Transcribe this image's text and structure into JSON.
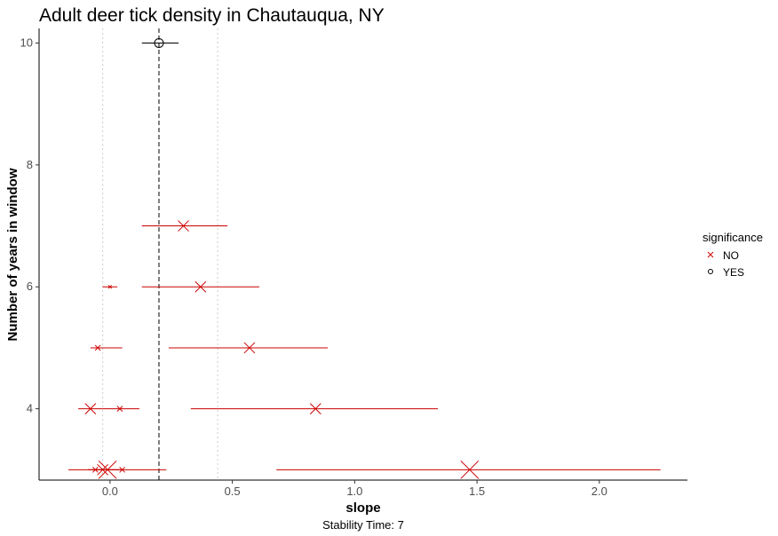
{
  "chart_data": {
    "type": "scatter",
    "title": "Adult deer tick density in Chautauqua, NY",
    "xlabel": "slope",
    "ylabel": "Number of years in window",
    "caption": "Stability Time: 7",
    "xlim": [
      -0.29,
      2.36
    ],
    "ylim": [
      2.83,
      10.24
    ],
    "x_ticks": [
      0.0,
      0.5,
      1.0,
      1.5,
      2.0
    ],
    "x_tick_labels": [
      "0.0",
      "0.5",
      "1.0",
      "1.5",
      "2.0"
    ],
    "y_ticks": [
      4,
      6,
      8,
      10
    ],
    "y_tick_labels": [
      "4",
      "6",
      "8",
      "10"
    ],
    "reference_lines": [
      {
        "x": 0.2,
        "style": "dashed",
        "color": "#000000"
      },
      {
        "x": -0.03,
        "style": "dotted",
        "color": "#cccccc"
      },
      {
        "x": 0.44,
        "style": "dotted",
        "color": "#cccccc"
      }
    ],
    "grid": false,
    "legend": {
      "title": "significance",
      "position": "right",
      "entries": [
        {
          "label": "NO",
          "shape": "x",
          "color": "#cc0000"
        },
        {
          "label": "YES",
          "shape": "circle",
          "color": "#000000"
        }
      ]
    },
    "series": [
      {
        "significance": "NO",
        "color": "#cc0000",
        "points": [
          {
            "y": 3,
            "x": -0.06,
            "xmin": -0.17,
            "xmax": 0.05,
            "size": 1
          },
          {
            "y": 3,
            "x": -0.03,
            "xmin": -0.09,
            "xmax": 0.03,
            "size": 2
          },
          {
            "y": 3,
            "x": -0.01,
            "xmin": -0.07,
            "xmax": 0.05,
            "size": 3
          },
          {
            "y": 3,
            "x": 0.05,
            "xmin": -0.09,
            "xmax": 0.23,
            "size": 1
          },
          {
            "y": 3,
            "x": 1.47,
            "xmin": 0.68,
            "xmax": 2.25,
            "size": 3
          },
          {
            "y": 4,
            "x": -0.08,
            "xmin": -0.13,
            "xmax": -0.03,
            "size": 2
          },
          {
            "y": 4,
            "x": 0.04,
            "xmin": -0.03,
            "xmax": 0.12,
            "size": 1
          },
          {
            "y": 4,
            "x": 0.84,
            "xmin": 0.33,
            "xmax": 1.34,
            "size": 2
          },
          {
            "y": 5,
            "x": -0.05,
            "xmin": -0.08,
            "xmax": 0.05,
            "size": 1
          },
          {
            "y": 5,
            "x": 0.57,
            "xmin": 0.24,
            "xmax": 0.89,
            "size": 2
          },
          {
            "y": 6,
            "x": 0.0,
            "xmin": -0.03,
            "xmax": 0.03,
            "size": 0
          },
          {
            "y": 6,
            "x": 0.37,
            "xmin": 0.13,
            "xmax": 0.61,
            "size": 2
          },
          {
            "y": 7,
            "x": 0.3,
            "xmin": 0.13,
            "xmax": 0.48,
            "size": 2
          }
        ]
      },
      {
        "significance": "YES",
        "color": "#000000",
        "points": [
          {
            "y": 10,
            "x": 0.2,
            "xmin": 0.13,
            "xmax": 0.28,
            "size": 2
          }
        ]
      }
    ]
  }
}
